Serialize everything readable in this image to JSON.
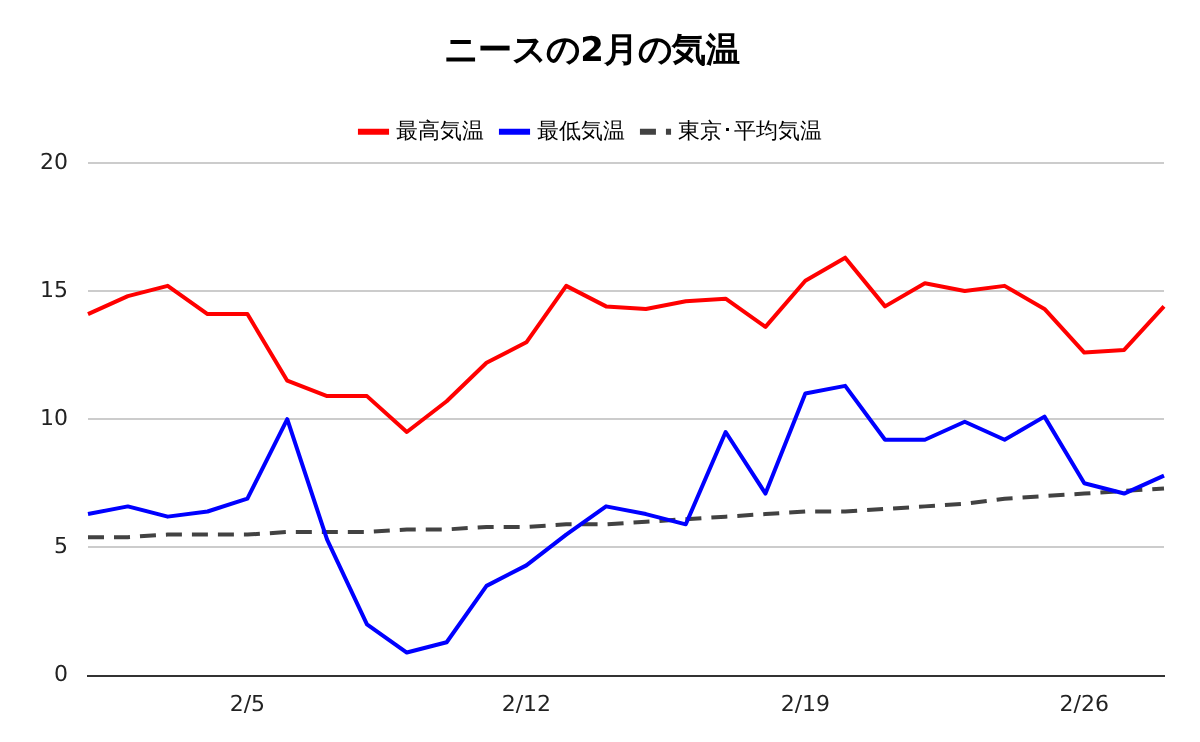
{
  "chart_data": {
    "type": "line",
    "title": "ニースの2月の気温",
    "categories": [
      null,
      null,
      null,
      null,
      "2/5",
      null,
      null,
      null,
      null,
      null,
      null,
      "2/12",
      null,
      null,
      null,
      null,
      null,
      null,
      "2/19",
      null,
      null,
      null,
      null,
      null,
      null,
      "2/26",
      null,
      null
    ],
    "series": [
      {
        "name": "最高気温",
        "color": "#ff0000",
        "line_style": "solid",
        "values": [
          14.1,
          14.8,
          15.2,
          14.1,
          14.1,
          11.5,
          10.9,
          10.9,
          9.5,
          10.7,
          12.2,
          13.0,
          15.2,
          14.4,
          14.3,
          14.6,
          14.7,
          13.6,
          15.4,
          16.3,
          14.4,
          15.3,
          15.0,
          15.2,
          14.3,
          12.6,
          12.7,
          14.4
        ]
      },
      {
        "name": "最低気温",
        "color": "#0000ff",
        "line_style": "solid",
        "values": [
          6.3,
          6.6,
          6.2,
          6.4,
          6.9,
          10.0,
          5.3,
          2.0,
          0.9,
          1.3,
          3.5,
          4.3,
          5.5,
          6.6,
          6.3,
          5.9,
          9.5,
          7.1,
          11.0,
          11.3,
          9.2,
          9.2,
          9.9,
          9.2,
          10.1,
          7.5,
          7.1,
          7.8
        ]
      },
      {
        "name": "東京･平均気温",
        "color": "#424242",
        "line_style": "dashed",
        "values": [
          5.4,
          5.4,
          5.5,
          5.5,
          5.5,
          5.6,
          5.6,
          5.6,
          5.7,
          5.7,
          5.8,
          5.8,
          5.9,
          5.9,
          6.0,
          6.1,
          6.2,
          6.3,
          6.4,
          6.4,
          6.5,
          6.6,
          6.7,
          6.9,
          7.0,
          7.1,
          7.2,
          7.3
        ]
      }
    ],
    "ylim": [
      0,
      20
    ],
    "yticks": [
      0,
      5,
      10,
      15,
      20
    ],
    "grid": "y",
    "legend": "top",
    "marker": "none"
  }
}
